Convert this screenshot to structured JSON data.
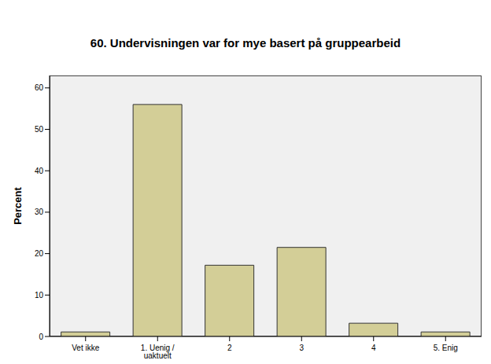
{
  "chart_data": {
    "type": "bar",
    "title": "60. Undervisningen var for mye basert på gruppearbeid",
    "y_label": "Percent",
    "categories": [
      "Vet ikke",
      "1. Uenig / uaktuelt",
      "2",
      "3",
      "4",
      "5. Enig"
    ],
    "values": [
      1.1,
      56,
      17.2,
      21.5,
      3.2,
      1.1
    ],
    "color": "#d3ce97",
    "ylim": [
      0,
      63
    ],
    "yticks": [
      0,
      10,
      20,
      30,
      40,
      50,
      60
    ],
    "grid": false
  }
}
